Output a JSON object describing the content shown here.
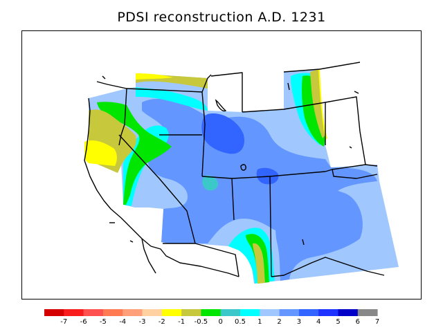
{
  "title": "PDSI reconstruction A.D. 1231",
  "legend": {
    "labels": [
      "-7",
      "-6",
      "-5",
      "-4",
      "-3",
      "-2",
      "-1",
      "-0.5",
      "0",
      "0.5",
      "1",
      "2",
      "3",
      "4",
      "5",
      "6",
      "7"
    ],
    "colors": [
      "#d40000",
      "#f81c1c",
      "#ff5050",
      "#ff7a50",
      "#ffa07a",
      "#ffd0a0",
      "#ffff00",
      "#c8c83c",
      "#00e600",
      "#3cc8c8",
      "#00ffff",
      "#a0c8ff",
      "#6496ff",
      "#3264ff",
      "#1e32ff",
      "#0000c8",
      "#888888"
    ]
  },
  "colors": {
    "background": "#ffffff",
    "ocean": "#ffffff",
    "boundaries": "#000000"
  }
}
